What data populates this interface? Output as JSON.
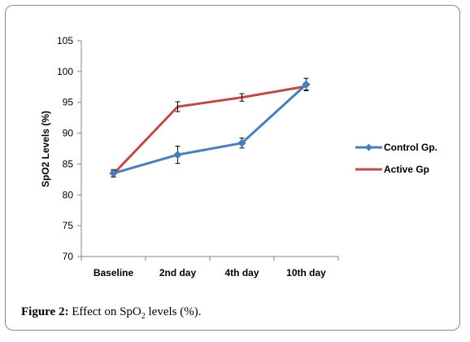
{
  "chart_data": {
    "type": "line",
    "categories": [
      "Baseline",
      "2nd day",
      "4th day",
      "10th day"
    ],
    "ylabel": "SpO2 Levels (%)",
    "xlabel": "",
    "ylim": [
      70,
      105
    ],
    "yticks": [
      70,
      75,
      80,
      85,
      90,
      95,
      100,
      105
    ],
    "grid": false,
    "legend_position": "right",
    "series": [
      {
        "name": "Control Gp.",
        "color": "#4a7ebb",
        "marker": "diamond",
        "values": [
          83.5,
          86.5,
          88.4,
          97.9
        ],
        "errors": [
          0.6,
          1.4,
          0.8,
          1.0
        ]
      },
      {
        "name": "Active Gp",
        "color": "#be4b48",
        "marker": "none",
        "values": [
          83.4,
          94.3,
          95.8,
          97.6
        ],
        "errors": [
          0.5,
          0.8,
          0.6,
          0.6
        ]
      }
    ]
  },
  "caption": {
    "label": "Figure 2:",
    "text_before": "Effect on SpO",
    "subscript": "2",
    "text_after": " levels (%)."
  }
}
